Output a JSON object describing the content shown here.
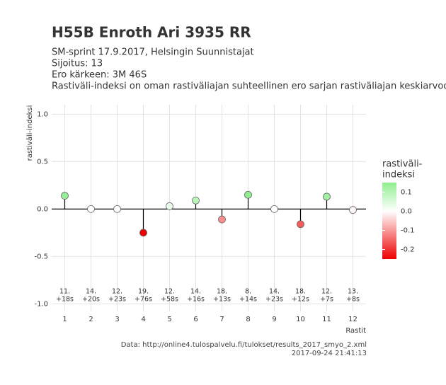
{
  "chart_data": {
    "type": "lollipop",
    "title": "H55B Enroth Ari 3935 RR",
    "subtitle": [
      "SM-sprint 17.9.2017, Helsingin Suunnistajat",
      "Sijoitus: 13",
      "Ero kärkeen: 3M 46S",
      "Rastiväli-indeksi on oman rastiväliajan suhteellinen ero sarjan rastiväliajan keskiarvoon"
    ],
    "x_label": "Rastit",
    "y_label": "rastiväli-indeksi",
    "x": [
      1,
      2,
      3,
      4,
      5,
      6,
      7,
      8,
      9,
      10,
      11,
      12
    ],
    "values": [
      0.14,
      0.0,
      0.0,
      -0.25,
      0.03,
      0.09,
      -0.11,
      0.15,
      0.0,
      -0.16,
      0.13,
      -0.01
    ],
    "rank_labels": [
      "11.",
      "14.",
      "12.",
      "19.",
      "12.",
      "14.",
      "18.",
      "8.",
      "14.",
      "18.",
      "12.",
      "13."
    ],
    "split_labels": [
      "+18s",
      "+20s",
      "+23s",
      "+76s",
      "+58s",
      "+16s",
      "+13s",
      "+14s",
      "+23s",
      "+12s",
      "+7s",
      "+8s"
    ],
    "xlim": [
      0.5,
      12.5
    ],
    "xticks": [
      1,
      2,
      3,
      4,
      5,
      6,
      7,
      8,
      9,
      10,
      11,
      12
    ],
    "ylim": [
      -1.08,
      1.1
    ],
    "yticks": [
      {
        "value": -1,
        "label": "-1.0"
      },
      -0.5,
      {
        "value": 0,
        "label": "0.0"
      },
      0.5,
      {
        "value": 1,
        "label": "1.0"
      }
    ],
    "grid": true,
    "legend_title": [
      "rastiväli-",
      "indeksi"
    ],
    "color_lim": [
      -0.25,
      0.15
    ],
    "color_ticks": [
      0.1,
      {
        "value": 0,
        "label": "0.0"
      },
      -0.1,
      -0.2
    ],
    "colors": {
      "low": "#ee0000",
      "mid": "#ffffff",
      "high": "#90ee90"
    },
    "caption": [
      "Data: http://online4.tulospalvelu.fi/tulokset/results_2017_smyo_2.xml",
      "2017-09-24 21:41:13"
    ]
  }
}
